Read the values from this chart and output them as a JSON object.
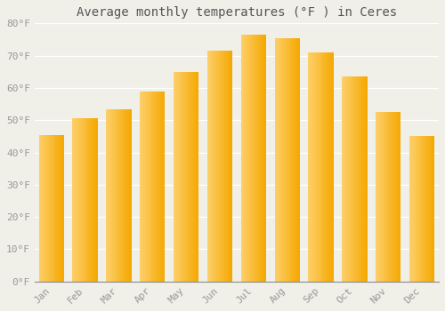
{
  "title": "Average monthly temperatures (°F ) in Ceres",
  "months": [
    "Jan",
    "Feb",
    "Mar",
    "Apr",
    "May",
    "Jun",
    "Jul",
    "Aug",
    "Sep",
    "Oct",
    "Nov",
    "Dec"
  ],
  "values": [
    45.5,
    50.5,
    53.5,
    59.0,
    65.0,
    71.5,
    76.5,
    75.5,
    71.0,
    63.5,
    52.5,
    45.0
  ],
  "bar_color_left": "#FDCF6A",
  "bar_color_right": "#F5A800",
  "bar_color_mid": "#FDB830",
  "background_color": "#F0F0E8",
  "grid_color": "#FFFFFF",
  "ylim": [
    0,
    80
  ],
  "yticks": [
    0,
    10,
    20,
    30,
    40,
    50,
    60,
    70,
    80
  ],
  "ytick_labels": [
    "0°F",
    "10°F",
    "20°F",
    "30°F",
    "40°F",
    "50°F",
    "60°F",
    "70°F",
    "80°F"
  ],
  "title_fontsize": 10,
  "tick_fontsize": 8,
  "tick_color": "#999999",
  "font_family": "monospace"
}
